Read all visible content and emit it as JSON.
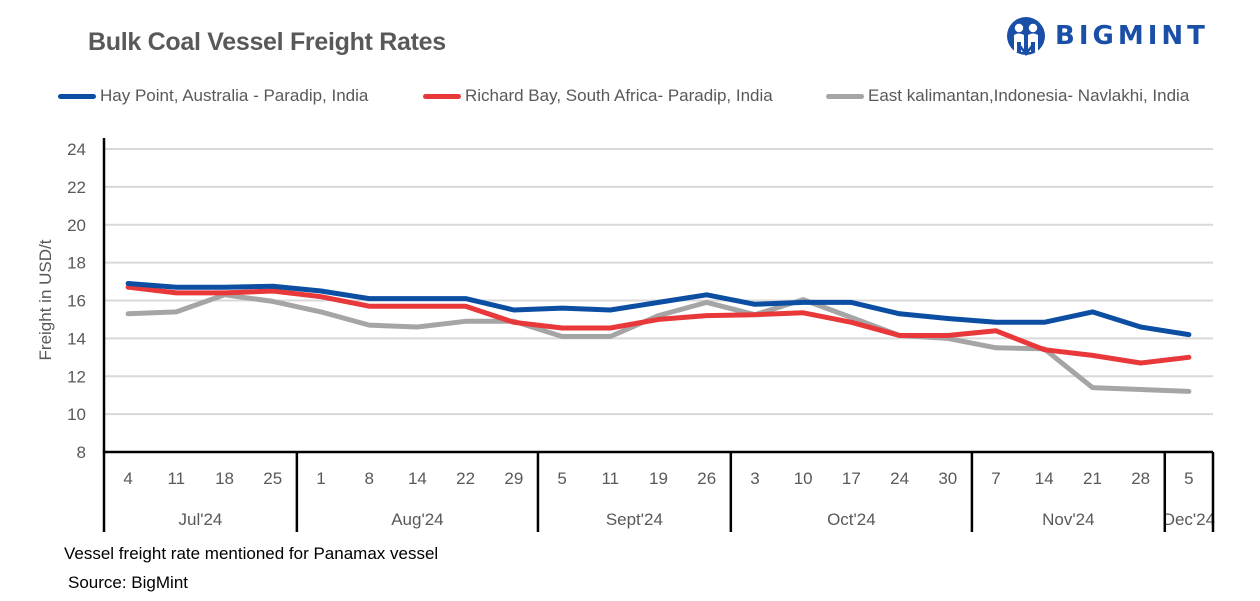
{
  "header": {
    "title": "Bulk Coal Vessel Freight Rates",
    "logo_text": "BIGMINT",
    "logo_color": "#1a4fa8"
  },
  "footer": {
    "note": "Vessel freight rate mentioned for Panamax  vessel",
    "source": "Source: BigMint"
  },
  "chart_data": {
    "type": "line",
    "title": "Bulk Coal Vessel Freight Rates",
    "xlabel": "",
    "ylabel": "Freight  in USD/t",
    "ylim": [
      8,
      24
    ],
    "yticks": [
      8,
      10,
      12,
      14,
      16,
      18,
      20,
      22,
      24
    ],
    "grid": true,
    "legend_position": "top",
    "categories": [
      "4",
      "11",
      "18",
      "25",
      "1",
      "8",
      "14",
      "22",
      "29",
      "5",
      "11",
      "19",
      "26",
      "3",
      "10",
      "17",
      "24",
      "30",
      "7",
      "14",
      "21",
      "28",
      "5"
    ],
    "month_groups": [
      {
        "label": "Jul'24",
        "count": 4
      },
      {
        "label": "Aug'24",
        "count": 5
      },
      {
        "label": "Sept'24",
        "count": 4
      },
      {
        "label": "Oct'24",
        "count": 5
      },
      {
        "label": "Nov'24",
        "count": 4
      },
      {
        "label": "Dec'24",
        "count": 1
      }
    ],
    "series": [
      {
        "name": "Hay Point, Australia - Paradip, India",
        "color": "#0b4ea2",
        "values": [
          16.9,
          16.7,
          16.7,
          16.75,
          16.5,
          16.1,
          16.1,
          16.1,
          15.5,
          15.6,
          15.5,
          15.9,
          16.3,
          15.8,
          15.9,
          15.9,
          15.3,
          15.05,
          14.85,
          14.85,
          15.4,
          14.6,
          14.2
        ]
      },
      {
        "name": "Richard Bay, South Africa- Paradip, India",
        "color": "#e8383a",
        "values": [
          16.7,
          16.4,
          16.4,
          16.5,
          16.2,
          15.7,
          15.7,
          15.7,
          14.85,
          14.55,
          14.55,
          15.0,
          15.2,
          15.25,
          15.35,
          14.85,
          14.15,
          14.15,
          14.4,
          13.4,
          13.1,
          12.7,
          13.0
        ]
      },
      {
        "name": "East kalimantan,Indonesia- Navlakhi, India",
        "color": "#a5a5a5",
        "values": [
          15.3,
          15.4,
          16.3,
          15.95,
          15.4,
          14.7,
          14.6,
          14.9,
          14.9,
          14.1,
          14.1,
          15.2,
          15.9,
          15.25,
          16.05,
          15.1,
          14.15,
          14.0,
          13.5,
          13.45,
          11.4,
          11.3,
          11.2
        ]
      }
    ]
  }
}
